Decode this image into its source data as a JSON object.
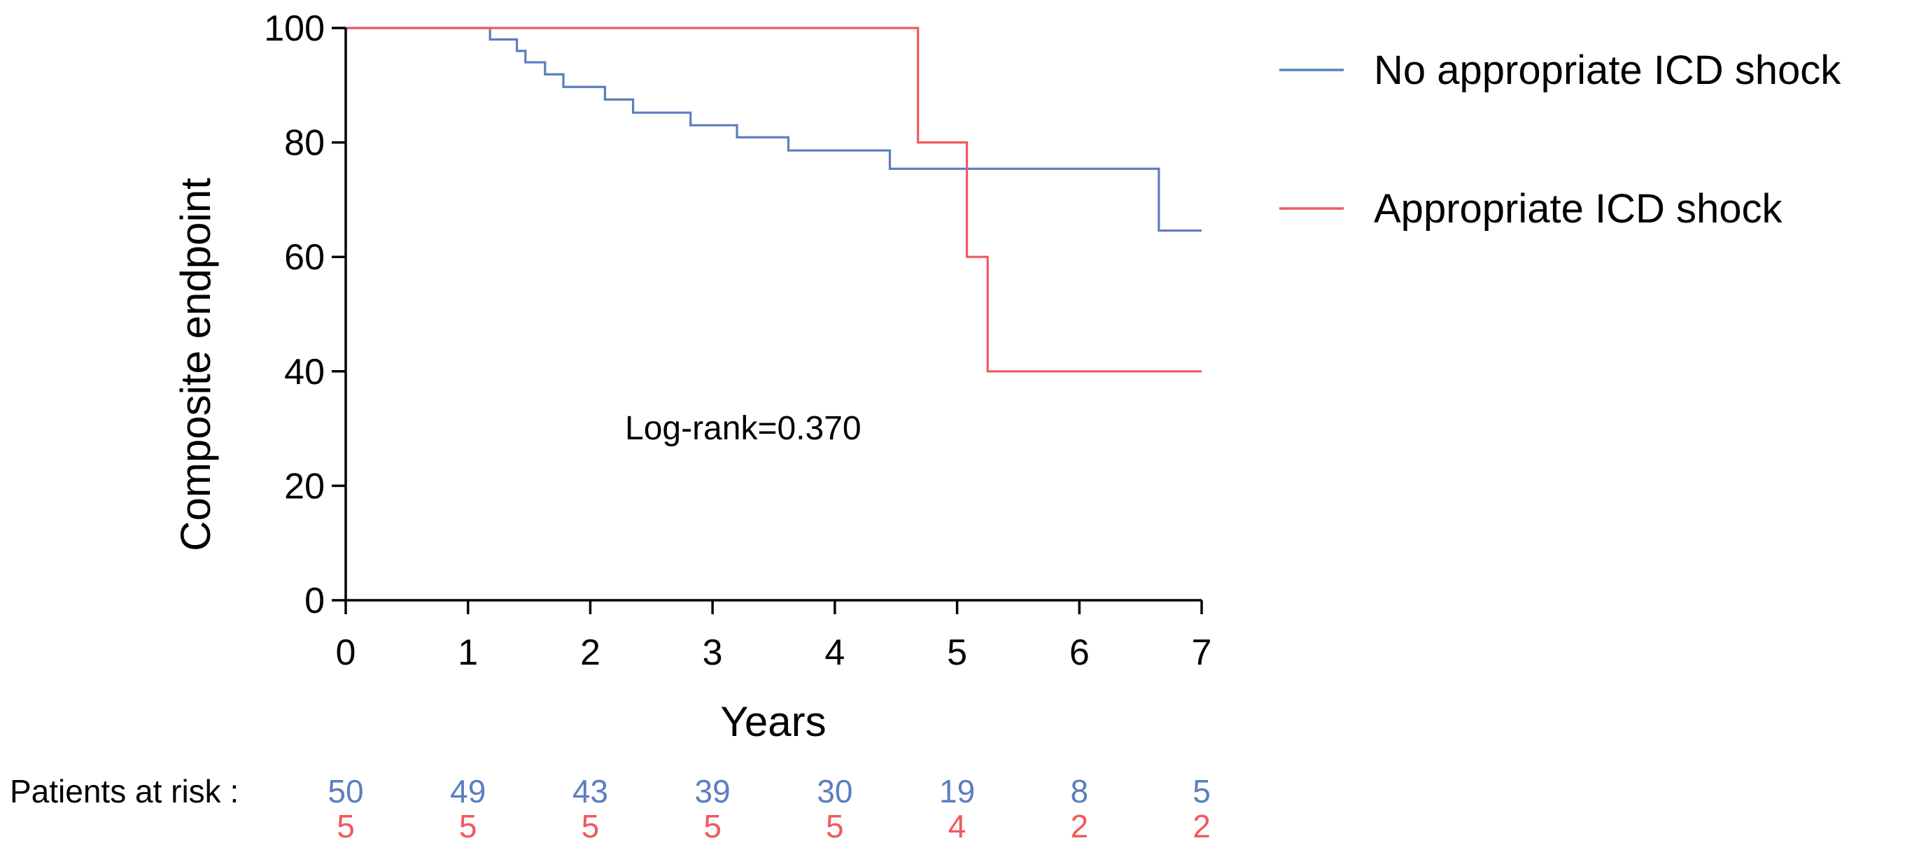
{
  "chart_data": {
    "type": "line",
    "subtype": "kaplan-meier",
    "title": "",
    "xlabel": "Years",
    "ylabel": "Composite endpoint",
    "xlim": [
      0,
      7
    ],
    "ylim": [
      0,
      100
    ],
    "x_ticks": [
      "0",
      "1",
      "2",
      "3",
      "4",
      "5",
      "6",
      "7"
    ],
    "y_ticks": [
      "0",
      "20",
      "40",
      "60",
      "80",
      "100"
    ],
    "grid": false,
    "legend_position": "top-right",
    "series": [
      {
        "name": "No appropriate ICD shock",
        "color": "#5a7ebf",
        "steps": [
          [
            0,
            100
          ],
          [
            1.18,
            98
          ],
          [
            1.4,
            96
          ],
          [
            1.47,
            94
          ],
          [
            1.63,
            91.9
          ],
          [
            1.78,
            89.7
          ],
          [
            2.12,
            87.5
          ],
          [
            2.35,
            85.2
          ],
          [
            2.82,
            83
          ],
          [
            3.2,
            80.9
          ],
          [
            3.62,
            78.6
          ],
          [
            4.45,
            75.4
          ],
          [
            6.65,
            64.6
          ],
          [
            7,
            64.6
          ]
        ],
        "at_risk": [
          "50",
          "49",
          "43",
          "39",
          "30",
          "19",
          "8",
          "5"
        ]
      },
      {
        "name": "Appropriate ICD shock",
        "color": "#f0595e",
        "steps": [
          [
            0,
            100
          ],
          [
            4.68,
            80
          ],
          [
            5.08,
            60
          ],
          [
            5.25,
            40
          ],
          [
            7,
            40
          ]
        ],
        "at_risk": [
          "5",
          "5",
          "5",
          "5",
          "5",
          "4",
          "2",
          "2"
        ]
      }
    ],
    "annotations": [
      "Log-rank=0.370"
    ],
    "risk_table_label": "Patients at risk :"
  }
}
